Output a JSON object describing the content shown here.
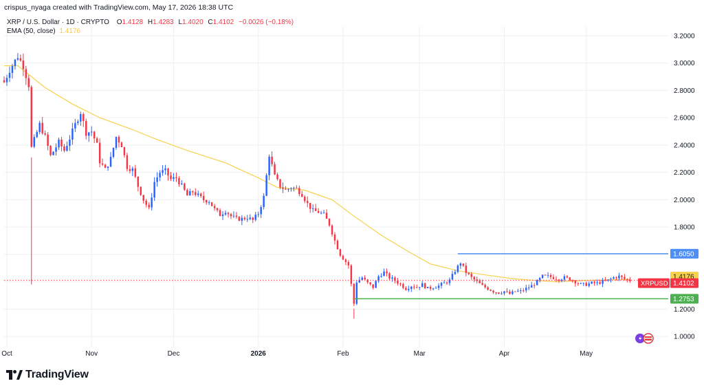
{
  "header": {
    "credit": "crispus_nyaga created with TradingView.com, May 17, 2026 18:38 UTC"
  },
  "legend": {
    "symbol": "XRP / U.S. Dollar · 1D · CRYPTO",
    "ohlc": [
      {
        "k": "O",
        "v": "1.4128"
      },
      {
        "k": "H",
        "v": "1.4283"
      },
      {
        "k": "L",
        "v": "1.4020"
      },
      {
        "k": "C",
        "v": "1.4102"
      },
      {
        "k": "",
        "v": "−0.0026 (−0.18%)"
      }
    ],
    "ema_label": "EMA (50, close)",
    "ema_value": "1.4176"
  },
  "brand": {
    "name": "TradingView"
  },
  "colors": {
    "up": "#2962ff",
    "down": "#f23645",
    "ema": "#f7d14a",
    "resistance": "#4e8ff5",
    "support": "#4caf50",
    "grid": "#eef0f3",
    "axis_text": "#131722"
  },
  "chart_data": {
    "type": "candlestick",
    "ticker": "XRPUSD",
    "interval": "1D",
    "x_axis_labels": [
      {
        "label": "Oct",
        "x": "2025-10-01"
      },
      {
        "label": "Nov",
        "x": "2025-11-01"
      },
      {
        "label": "Dec",
        "x": "2025-12-01"
      },
      {
        "label": "2026",
        "x": "2026-01-01"
      },
      {
        "label": "Feb",
        "x": "2026-02-01"
      },
      {
        "label": "Mar",
        "x": "2026-03-01"
      },
      {
        "label": "Apr",
        "x": "2026-04-01"
      },
      {
        "label": "May",
        "x": "2026-05-01"
      }
    ],
    "x_range": [
      "2025-09-30",
      "2026-05-31"
    ],
    "y_ticks": [
      "1.0000",
      "1.2000",
      "1.4000",
      "1.6000",
      "1.8000",
      "2.0000",
      "2.2000",
      "2.4000",
      "2.6000",
      "2.8000",
      "3.0000",
      "3.2000"
    ],
    "y_range": [
      0.92,
      3.27
    ],
    "grid": true,
    "close_points": [
      [
        "2025-09-30",
        2.86
      ],
      [
        "2025-10-02",
        2.95
      ],
      [
        "2025-10-05",
        3.05
      ],
      [
        "2025-10-07",
        2.98
      ],
      [
        "2025-10-09",
        2.84
      ],
      [
        "2025-10-10",
        2.38
      ],
      [
        "2025-10-13",
        2.55
      ],
      [
        "2025-10-15",
        2.46
      ],
      [
        "2025-10-17",
        2.32
      ],
      [
        "2025-10-20",
        2.42
      ],
      [
        "2025-10-22",
        2.36
      ],
      [
        "2025-10-24",
        2.45
      ],
      [
        "2025-10-26",
        2.55
      ],
      [
        "2025-10-28",
        2.64
      ],
      [
        "2025-10-30",
        2.49
      ],
      [
        "2025-11-01",
        2.5
      ],
      [
        "2025-11-03",
        2.4
      ],
      [
        "2025-11-04",
        2.28
      ],
      [
        "2025-11-06",
        2.22
      ],
      [
        "2025-11-08",
        2.3
      ],
      [
        "2025-11-10",
        2.46
      ],
      [
        "2025-11-12",
        2.4
      ],
      [
        "2025-11-14",
        2.24
      ],
      [
        "2025-11-16",
        2.22
      ],
      [
        "2025-11-18",
        2.1
      ],
      [
        "2025-11-20",
        2.0
      ],
      [
        "2025-11-22",
        1.93
      ],
      [
        "2025-11-24",
        2.13
      ],
      [
        "2025-11-26",
        2.2
      ],
      [
        "2025-11-28",
        2.21
      ],
      [
        "2025-11-30",
        2.15
      ],
      [
        "2025-12-02",
        2.16
      ],
      [
        "2025-12-04",
        2.1
      ],
      [
        "2025-12-06",
        2.03
      ],
      [
        "2025-12-08",
        2.06
      ],
      [
        "2025-12-10",
        2.03
      ],
      [
        "2025-12-12",
        2.0
      ],
      [
        "2025-12-14",
        1.99
      ],
      [
        "2025-12-16",
        1.93
      ],
      [
        "2025-12-18",
        1.89
      ],
      [
        "2025-12-20",
        1.92
      ],
      [
        "2025-12-22",
        1.88
      ],
      [
        "2025-12-24",
        1.86
      ],
      [
        "2025-12-26",
        1.86
      ],
      [
        "2025-12-28",
        1.87
      ],
      [
        "2025-12-30",
        1.85
      ],
      [
        "2026-01-01",
        1.9
      ],
      [
        "2026-01-03",
        2.02
      ],
      [
        "2026-01-05",
        2.33
      ],
      [
        "2026-01-07",
        2.17
      ],
      [
        "2026-01-09",
        2.1
      ],
      [
        "2026-01-11",
        2.07
      ],
      [
        "2026-01-13",
        2.09
      ],
      [
        "2026-01-15",
        2.08
      ],
      [
        "2026-01-17",
        2.04
      ],
      [
        "2026-01-19",
        1.97
      ],
      [
        "2026-01-21",
        1.92
      ],
      [
        "2026-01-23",
        1.91
      ],
      [
        "2026-01-25",
        1.89
      ],
      [
        "2026-01-27",
        1.82
      ],
      [
        "2026-01-29",
        1.7
      ],
      [
        "2026-01-31",
        1.6
      ],
      [
        "2026-02-03",
        1.52
      ],
      [
        "2026-02-05",
        1.24
      ],
      [
        "2026-02-06",
        1.4
      ],
      [
        "2026-02-08",
        1.43
      ],
      [
        "2026-02-10",
        1.39
      ],
      [
        "2026-02-12",
        1.36
      ],
      [
        "2026-02-14",
        1.44
      ],
      [
        "2026-02-16",
        1.47
      ],
      [
        "2026-02-18",
        1.43
      ],
      [
        "2026-02-20",
        1.41
      ],
      [
        "2026-02-22",
        1.38
      ],
      [
        "2026-02-24",
        1.35
      ],
      [
        "2026-02-26",
        1.37
      ],
      [
        "2026-02-28",
        1.36
      ],
      [
        "2026-03-02",
        1.38
      ],
      [
        "2026-03-04",
        1.35
      ],
      [
        "2026-03-06",
        1.36
      ],
      [
        "2026-03-08",
        1.37
      ],
      [
        "2026-03-10",
        1.39
      ],
      [
        "2026-03-12",
        1.41
      ],
      [
        "2026-03-14",
        1.48
      ],
      [
        "2026-03-16",
        1.54
      ],
      [
        "2026-03-18",
        1.47
      ],
      [
        "2026-03-20",
        1.43
      ],
      [
        "2026-03-22",
        1.4
      ],
      [
        "2026-03-24",
        1.37
      ],
      [
        "2026-03-26",
        1.35
      ],
      [
        "2026-03-28",
        1.33
      ],
      [
        "2026-03-30",
        1.32
      ],
      [
        "2026-04-01",
        1.33
      ],
      [
        "2026-04-03",
        1.31
      ],
      [
        "2026-04-05",
        1.33
      ],
      [
        "2026-04-07",
        1.33
      ],
      [
        "2026-04-09",
        1.35
      ],
      [
        "2026-04-11",
        1.37
      ],
      [
        "2026-04-13",
        1.4
      ],
      [
        "2026-04-15",
        1.44
      ],
      [
        "2026-04-17",
        1.44
      ],
      [
        "2026-04-19",
        1.43
      ],
      [
        "2026-04-21",
        1.42
      ],
      [
        "2026-04-23",
        1.43
      ],
      [
        "2026-04-25",
        1.42
      ],
      [
        "2026-04-27",
        1.4
      ],
      [
        "2026-04-29",
        1.38
      ],
      [
        "2026-05-01",
        1.38
      ],
      [
        "2026-05-03",
        1.39
      ],
      [
        "2026-05-05",
        1.39
      ],
      [
        "2026-05-07",
        1.4
      ],
      [
        "2026-05-09",
        1.41
      ],
      [
        "2026-05-11",
        1.43
      ],
      [
        "2026-05-13",
        1.44
      ],
      [
        "2026-05-15",
        1.42
      ],
      [
        "2026-05-17",
        1.41
      ]
    ],
    "ema_points": [
      [
        "2025-09-30",
        2.98
      ],
      [
        "2025-10-05",
        2.98
      ],
      [
        "2025-10-15",
        2.82
      ],
      [
        "2025-10-25",
        2.7
      ],
      [
        "2025-11-04",
        2.6
      ],
      [
        "2025-11-15",
        2.52
      ],
      [
        "2025-11-25",
        2.44
      ],
      [
        "2025-12-06",
        2.36
      ],
      [
        "2025-12-20",
        2.27
      ],
      [
        "2026-01-01",
        2.16
      ],
      [
        "2026-01-08",
        2.09
      ],
      [
        "2026-01-18",
        2.07
      ],
      [
        "2026-01-28",
        2.0
      ],
      [
        "2026-02-05",
        1.88
      ],
      [
        "2026-02-15",
        1.74
      ],
      [
        "2026-02-25",
        1.62
      ],
      [
        "2026-03-05",
        1.53
      ],
      [
        "2026-03-15",
        1.48
      ],
      [
        "2026-03-25",
        1.45
      ],
      [
        "2026-04-05",
        1.42
      ],
      [
        "2026-04-20",
        1.4
      ],
      [
        "2026-05-01",
        1.41
      ],
      [
        "2026-05-17",
        1.4176
      ]
    ],
    "spikes": [
      {
        "x": "2025-10-10",
        "low": 1.38
      },
      {
        "x": "2026-02-05",
        "low": 1.13
      }
    ],
    "annotations": {
      "resistance": {
        "y": 1.605,
        "from": "2026-03-15",
        "label": "1.6050"
      },
      "support": {
        "y": 1.2753,
        "from": "2026-02-05",
        "label": "1.2753"
      },
      "ema_label": {
        "y": 1.4176,
        "label": "1.4176"
      },
      "price": {
        "y": 1.4102,
        "ticker": "XRPUSD",
        "label": "1.4102"
      },
      "price_line": {
        "y": 1.41
      }
    }
  }
}
